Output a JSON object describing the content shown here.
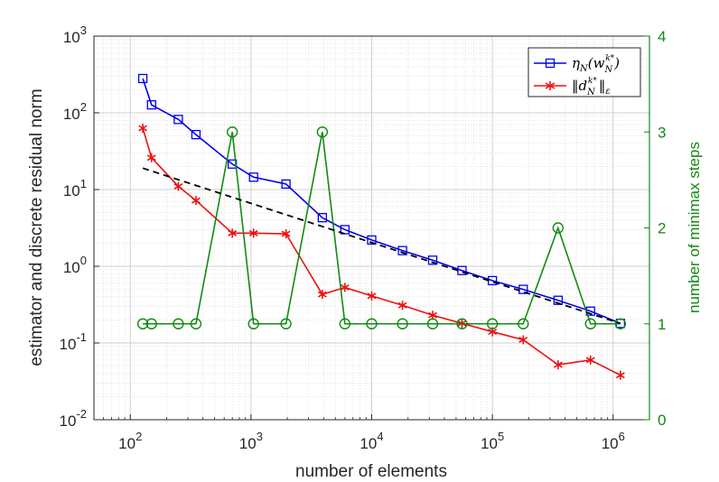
{
  "chart_data": {
    "type": "line",
    "xscale": "log",
    "xlim": [
      50,
      2000000
    ],
    "xlabel": "number of elements",
    "x_tick_labels": [
      {
        "base": "10",
        "exp": "2"
      },
      {
        "base": "10",
        "exp": "3"
      },
      {
        "base": "10",
        "exp": "4"
      },
      {
        "base": "10",
        "exp": "5"
      },
      {
        "base": "10",
        "exp": "6"
      }
    ],
    "left_axis": {
      "scale": "log",
      "ylim": [
        0.01,
        1000
      ],
      "ylabel": "estimator and discrete residual norm",
      "tick_labels": [
        {
          "base": "10",
          "exp": "-2"
        },
        {
          "base": "10",
          "exp": "-1"
        },
        {
          "base": "10",
          "exp": "0"
        },
        {
          "base": "10",
          "exp": "1"
        },
        {
          "base": "10",
          "exp": "2"
        },
        {
          "base": "10",
          "exp": "3"
        }
      ]
    },
    "right_axis": {
      "scale": "linear",
      "ylim": [
        0,
        4
      ],
      "ylabel": "number of minimax steps",
      "tick_labels": [
        "0",
        "1",
        "2",
        "3",
        "4"
      ]
    },
    "legend": {
      "position": "top-right",
      "entries": [
        "η_N(w_N^{k*})",
        "||d_N^{k*}||_ε"
      ]
    },
    "series": [
      {
        "name": "eta",
        "legend_label": "η_N(w_N^{k*})",
        "axis": "left",
        "color": "#0000ee",
        "marker": "square",
        "x": [
          127,
          150,
          250,
          350,
          700,
          1050,
          1950,
          3900,
          6000,
          10000,
          18000,
          32000,
          56000,
          100000,
          180000,
          350000,
          650000,
          1150000
        ],
        "y": [
          280,
          127,
          82,
          52,
          21.5,
          14.5,
          11.8,
          4.3,
          3.0,
          2.2,
          1.6,
          1.2,
          0.88,
          0.65,
          0.5,
          0.36,
          0.26,
          0.18
        ]
      },
      {
        "name": "residual",
        "legend_label": "||d_N^{k*}||_ε",
        "axis": "left",
        "color": "#ee1111",
        "marker": "asterisk",
        "x": [
          127,
          150,
          250,
          350,
          700,
          1050,
          1950,
          3900,
          6000,
          10000,
          18000,
          32000,
          56000,
          100000,
          180000,
          350000,
          650000,
          1150000
        ],
        "y": [
          63,
          26,
          11,
          7.2,
          2.7,
          2.7,
          2.65,
          0.43,
          0.53,
          0.41,
          0.31,
          0.23,
          0.18,
          0.14,
          0.11,
          0.052,
          0.06,
          0.038
        ]
      },
      {
        "name": "minimax-steps",
        "axis": "right",
        "color": "#138a13",
        "marker": "circle",
        "x": [
          127,
          150,
          250,
          350,
          700,
          1050,
          1950,
          3900,
          6000,
          10000,
          18000,
          32000,
          56000,
          100000,
          180000,
          350000,
          650000,
          1150000
        ],
        "y": [
          1,
          1,
          1,
          1,
          3,
          1,
          1,
          3,
          1,
          1,
          1,
          1,
          1,
          1,
          1,
          2,
          1,
          1
        ]
      },
      {
        "name": "reference-slope",
        "axis": "left",
        "color": "#000000",
        "style": "dashed",
        "x": [
          127,
          1150000
        ],
        "y": [
          19,
          0.18
        ]
      }
    ]
  }
}
